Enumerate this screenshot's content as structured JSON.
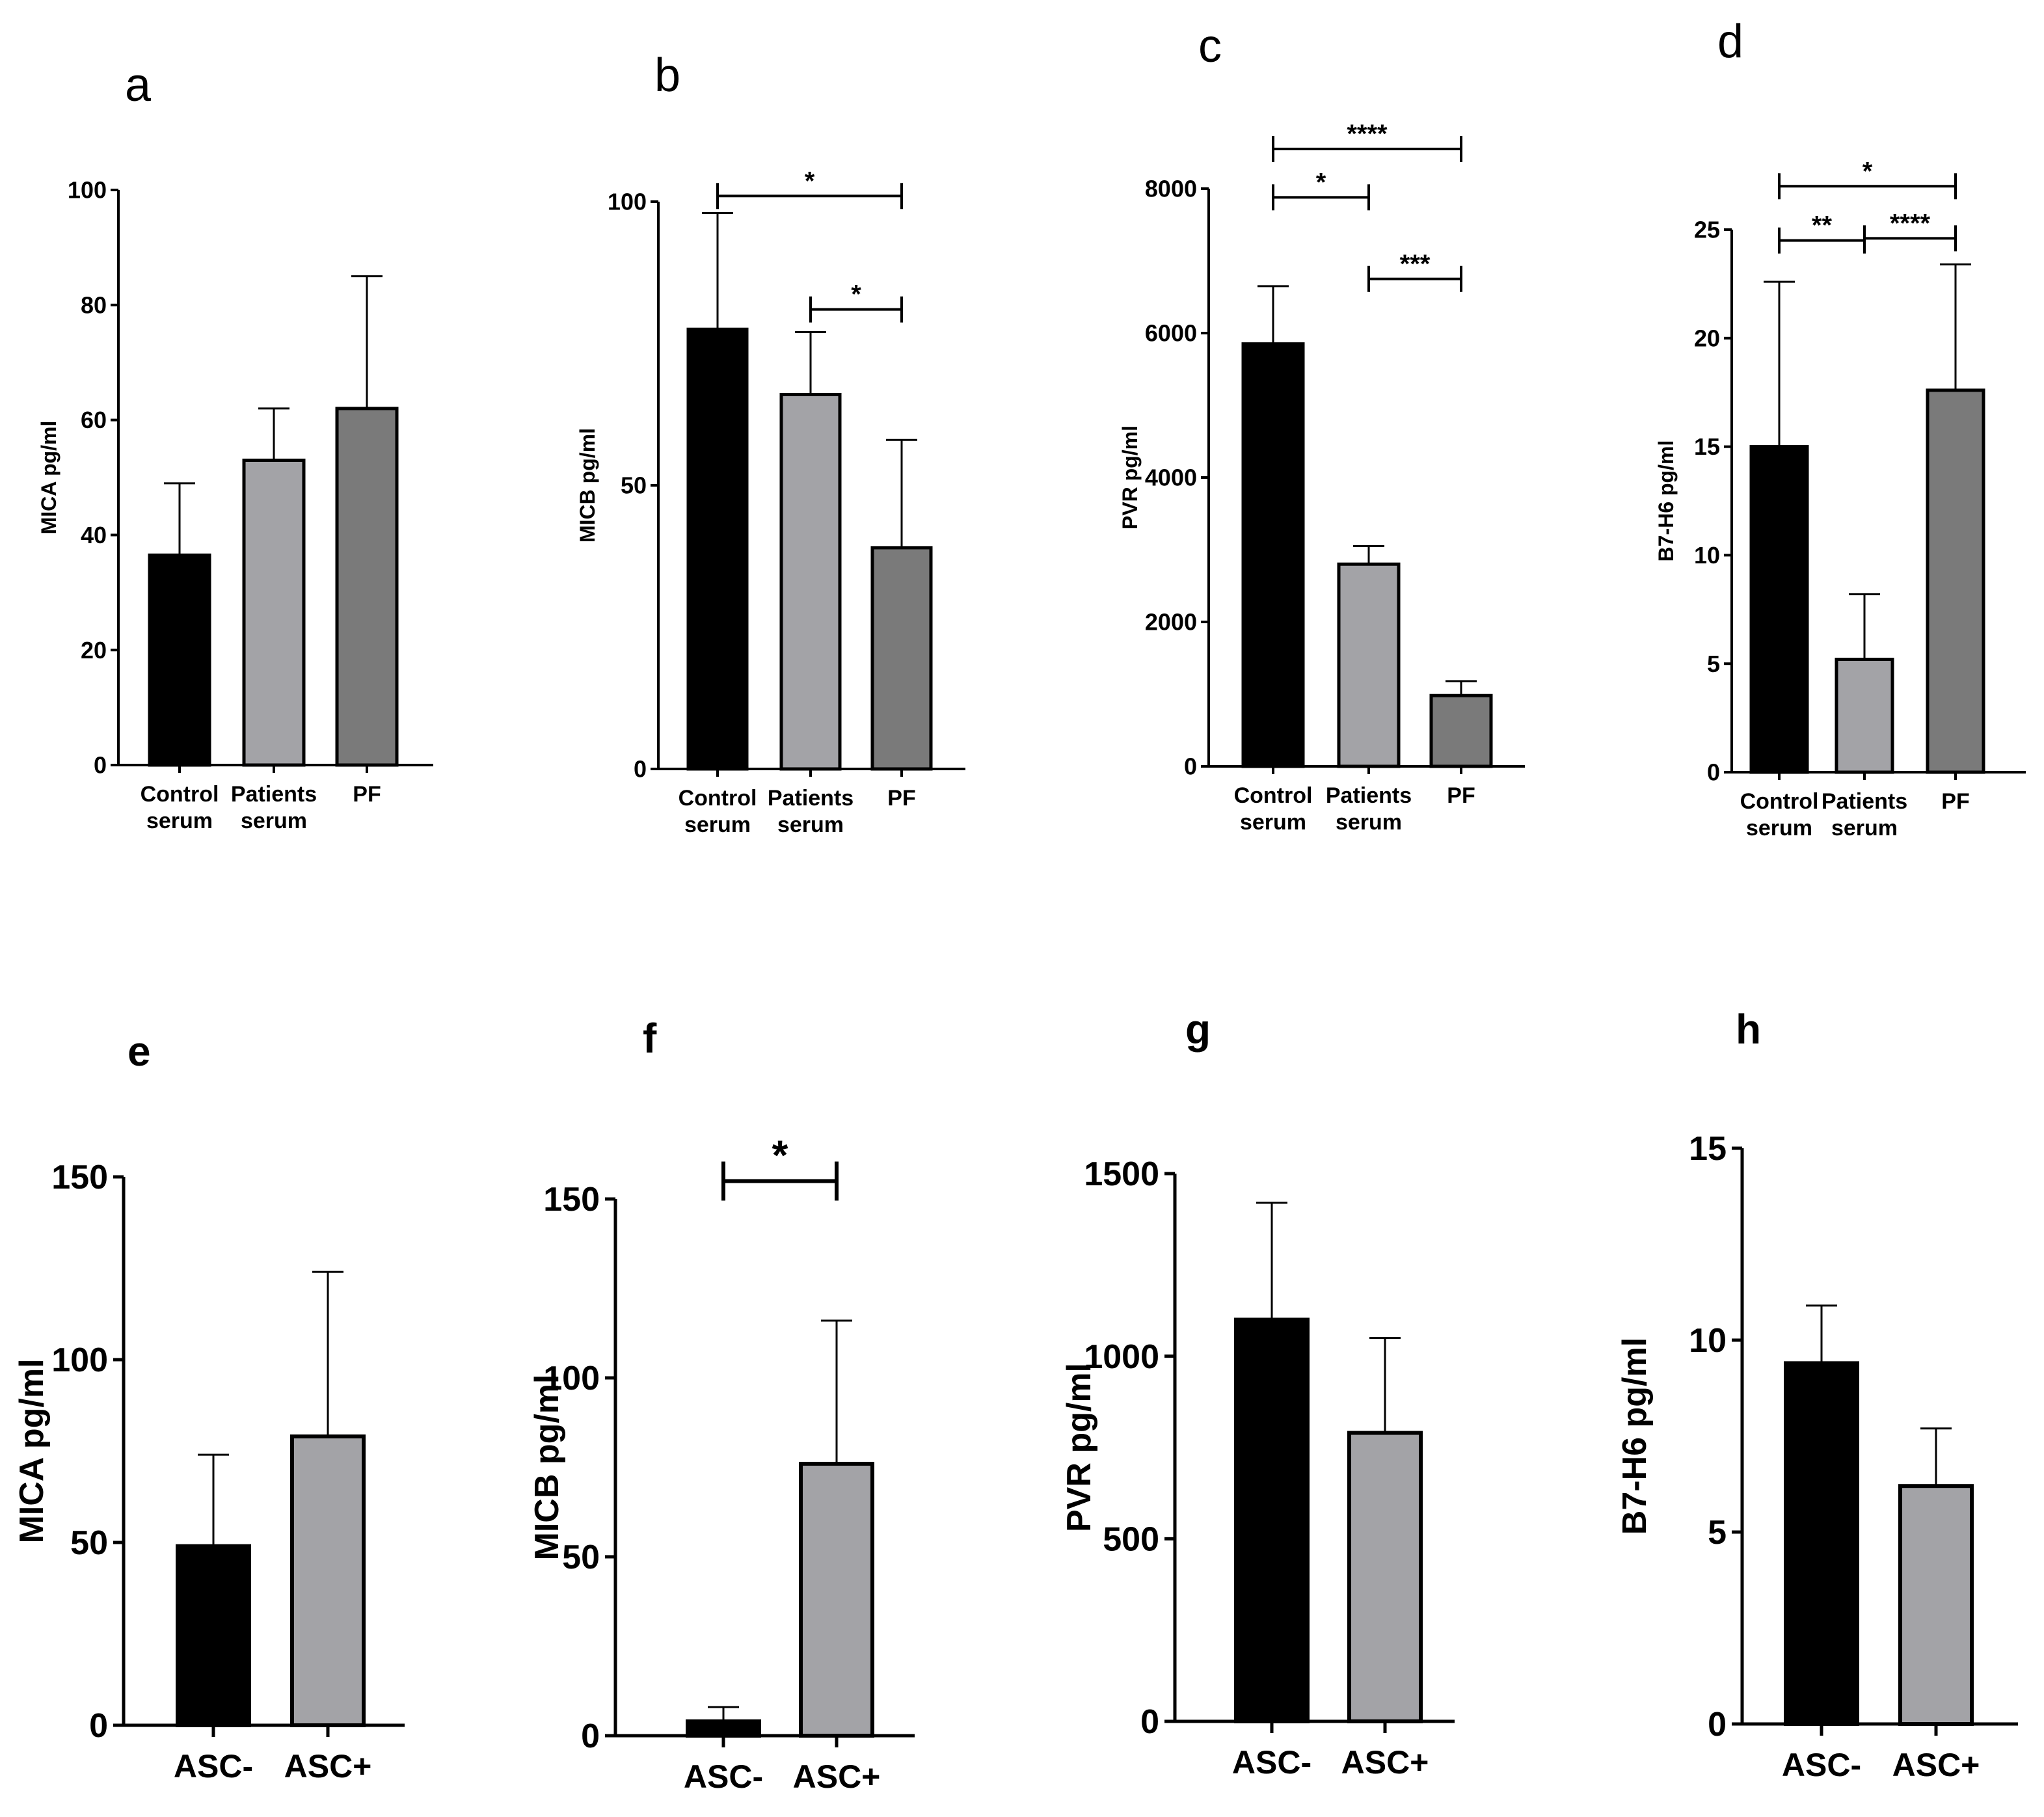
{
  "figure": {
    "colors": {
      "black": "#000000",
      "light_gray": "#a3a3a7",
      "dark_gray": "#7a7a7a"
    }
  },
  "chart_data": [
    {
      "panel": "a",
      "type": "bar",
      "ylabel": "MICA pg/ml",
      "categories": [
        "Control serum",
        "Patients serum",
        "PF"
      ],
      "values": [
        36.5,
        53,
        62
      ],
      "errors_upper": [
        49,
        62,
        85
      ],
      "ylim": [
        0,
        100
      ],
      "yticks": [
        0,
        20,
        40,
        60,
        80,
        100
      ],
      "bar_colors": [
        "#000000",
        "#a3a3a7",
        "#7a7a7a"
      ],
      "significance": []
    },
    {
      "panel": "b",
      "type": "bar",
      "ylabel": "MICB pg/ml",
      "categories": [
        "Control serum",
        "Patients serum",
        "PF"
      ],
      "values": [
        77.5,
        66,
        39
      ],
      "errors_upper": [
        98,
        77,
        58
      ],
      "ylim": [
        0,
        100
      ],
      "yticks": [
        0,
        50,
        100
      ],
      "bar_colors": [
        "#000000",
        "#a3a3a7",
        "#7a7a7a"
      ],
      "significance": [
        {
          "from": 0,
          "to": 2,
          "label": "*",
          "y": 101
        },
        {
          "from": 1,
          "to": 2,
          "label": "*",
          "y": 81
        }
      ]
    },
    {
      "panel": "c",
      "type": "bar",
      "ylabel": "PVR pg/ml",
      "categories": [
        "Control serum",
        "Patients serum",
        "PF"
      ],
      "values": [
        5850,
        2800,
        980
      ],
      "errors_upper": [
        6650,
        3050,
        1180
      ],
      "ylim": [
        0,
        8000
      ],
      "yticks": [
        0,
        2000,
        4000,
        6000,
        8000
      ],
      "bar_colors": [
        "#000000",
        "#a3a3a7",
        "#7a7a7a"
      ],
      "significance": [
        {
          "from": 0,
          "to": 2,
          "label": "****",
          "y": 8550
        },
        {
          "from": 0,
          "to": 1,
          "label": "*",
          "y": 7880
        },
        {
          "from": 1,
          "to": 2,
          "label": "***",
          "y": 6750
        }
      ]
    },
    {
      "panel": "d",
      "type": "bar",
      "ylabel": "B7-H6 pg/ml",
      "categories": [
        "Control serum",
        "Patients serum",
        "PF"
      ],
      "values": [
        15,
        5.2,
        17.6
      ],
      "errors_upper": [
        22.6,
        8.2,
        23.4
      ],
      "ylim": [
        0,
        25
      ],
      "yticks": [
        0,
        5,
        10,
        15,
        20,
        25
      ],
      "bar_colors": [
        "#000000",
        "#a3a3a7",
        "#7a7a7a"
      ],
      "significance": [
        {
          "from": 0,
          "to": 2,
          "label": "*",
          "y": 27
        },
        {
          "from": 0,
          "to": 1,
          "label": "**",
          "y": 24.5
        },
        {
          "from": 1,
          "to": 2,
          "label": "****",
          "y": 24.6
        }
      ]
    },
    {
      "panel": "e",
      "type": "bar",
      "ylabel": "MICA pg/ml",
      "categories": [
        "ASC-",
        "ASC+"
      ],
      "values": [
        49,
        79
      ],
      "errors_upper": [
        74,
        124
      ],
      "ylim": [
        0,
        150
      ],
      "yticks": [
        0,
        50,
        100,
        150
      ],
      "bar_colors": [
        "#000000",
        "#a3a3a7"
      ],
      "significance": []
    },
    {
      "panel": "f",
      "type": "bar",
      "ylabel": "MICB pg/ml",
      "categories": [
        "ASC-",
        "ASC+"
      ],
      "values": [
        4,
        76
      ],
      "errors_upper": [
        8,
        116
      ],
      "ylim": [
        0,
        150
      ],
      "yticks": [
        0,
        50,
        100,
        150
      ],
      "bar_colors": [
        "#000000",
        "#a3a3a7"
      ],
      "significance": [
        {
          "from": 0,
          "to": 1,
          "label": "*",
          "y": 155
        }
      ]
    },
    {
      "panel": "g",
      "type": "bar",
      "ylabel": "PVR pg/ml",
      "categories": [
        "ASC-",
        "ASC+"
      ],
      "values": [
        1100,
        790
      ],
      "errors_upper": [
        1420,
        1050
      ],
      "ylim": [
        0,
        1500
      ],
      "yticks": [
        0,
        500,
        1000,
        1500
      ],
      "bar_colors": [
        "#000000",
        "#a3a3a7"
      ],
      "significance": []
    },
    {
      "panel": "h",
      "type": "bar",
      "ylabel": "B7-H6 pg/ml",
      "categories": [
        "ASC-",
        "ASC+"
      ],
      "values": [
        9.4,
        6.2
      ],
      "errors_upper": [
        10.9,
        7.7
      ],
      "ylim": [
        0,
        15
      ],
      "yticks": [
        0,
        5,
        10,
        15
      ],
      "bar_colors": [
        "#000000",
        "#a3a3a7"
      ],
      "significance": []
    }
  ]
}
